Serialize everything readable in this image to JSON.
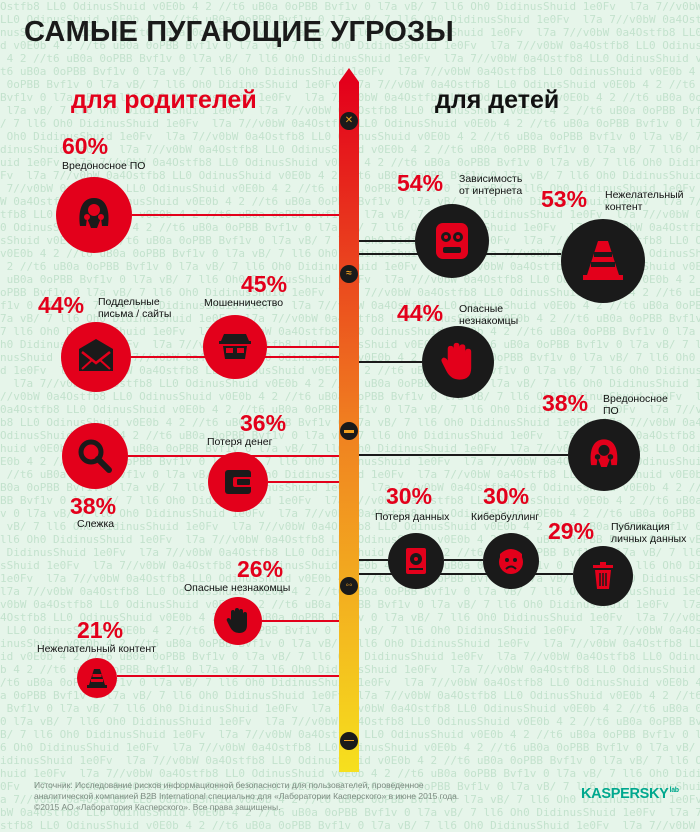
{
  "title": "САМЫЕ ПУГАЮЩИЕ УГРОЗЫ",
  "headings": {
    "parents": "для родителей",
    "kids": "для детей"
  },
  "colors": {
    "accent": "#e3001b",
    "dark": "#1a1a1a",
    "background": "#e6f5ea",
    "brand": "#00a88e"
  },
  "parents": [
    {
      "pct": "60%",
      "label": "Вредоносное ПО",
      "icon": "malware-bug-icon"
    },
    {
      "pct": "45%",
      "label": "Мошенничество",
      "icon": "fraudster-icon"
    },
    {
      "pct": "44%",
      "label": "Поддельные письма / сайты",
      "icon": "envelope-icon"
    },
    {
      "pct": "36%",
      "label": "Потеря денег",
      "icon": "wallet-icon"
    },
    {
      "pct": "38%",
      "label": "Слежка",
      "icon": "magnifier-icon"
    },
    {
      "pct": "26%",
      "label": "Опасные незнакомцы",
      "icon": "stop-hand-icon"
    },
    {
      "pct": "21%",
      "label": "Нежелательный контент",
      "icon": "traffic-cone-icon"
    }
  ],
  "kids": [
    {
      "pct": "54%",
      "label": "Зависимость от интернета",
      "icon": "addicted-face-icon"
    },
    {
      "pct": "53%",
      "label": "Нежелательный контент",
      "icon": "traffic-cone-icon"
    },
    {
      "pct": "44%",
      "label": "Опасные незнакомцы",
      "icon": "stop-hand-icon"
    },
    {
      "pct": "38%",
      "label": "Вредоносное ПО",
      "icon": "malware-bug-icon"
    },
    {
      "pct": "30%",
      "label": "Потеря данных",
      "icon": "hard-drive-icon"
    },
    {
      "pct": "30%",
      "label": "Кибербуллинг",
      "icon": "crying-face-icon"
    },
    {
      "pct": "29%",
      "label": "Публикация личных данных",
      "icon": "trash-can-icon"
    }
  ],
  "footer": {
    "line1": "Источник: Исследование рисков информационной безопасности для пользователей, проведенное",
    "line2": "аналитической компанией B2B International специально для «Лаборатории Касперского» в июне 2015 года.",
    "line3": "©2015 АО «Лаборатория Касперского». Все права защищены."
  },
  "logo": {
    "text": "KASPERSKY",
    "sup": "lab"
  },
  "matrix_text": "Ostfb8 LL0 OdinusShuid v0E0b 4 2 //t6 uB0a 0oPBB Bvf1v 0 l7a vB/ 7 ll6 Oh0 DidinusShuid 1e0Fv  l7a 7//v0bW 0a4"
}
